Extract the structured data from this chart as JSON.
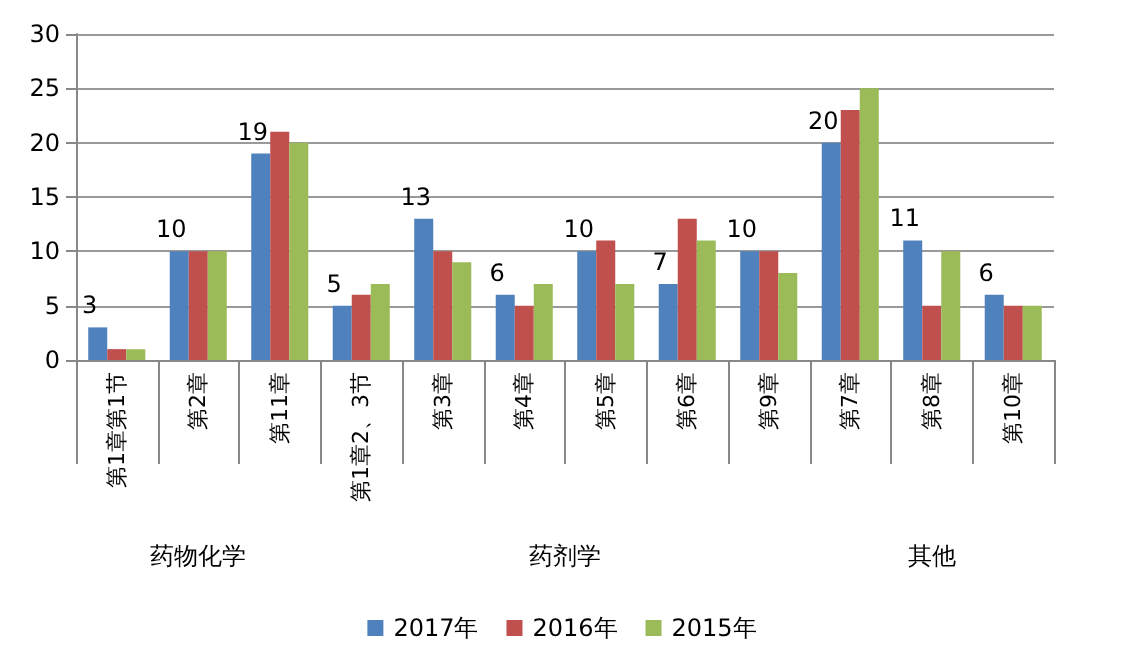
{
  "chart_data": {
    "type": "bar",
    "categories": [
      "第1章第1节",
      "第2章",
      "第11章",
      "第1章2、3节",
      "第3章",
      "第4章",
      "第5章",
      "第6章",
      "第9章",
      "第7章",
      "第8章",
      "第10章"
    ],
    "series": [
      {
        "name": "2017年",
        "color": "#4f81bd",
        "values": [
          3,
          10,
          19,
          5,
          13,
          6,
          10,
          7,
          10,
          20,
          11,
          6
        ],
        "value_labels": [
          "3",
          "10",
          "19",
          "5",
          "13",
          "6",
          "10",
          "7",
          "10",
          "20",
          "11",
          "6"
        ]
      },
      {
        "name": "2016年",
        "color": "#c0504d",
        "values": [
          1,
          10,
          21,
          6,
          10,
          5,
          11,
          13,
          10,
          23,
          5,
          5
        ]
      },
      {
        "name": "2015年",
        "color": "#9bbb59",
        "values": [
          1,
          10,
          20,
          7,
          9,
          7,
          7,
          11,
          8,
          25,
          10,
          5
        ]
      }
    ],
    "annotations": [
      "药物化学",
      "药剂学",
      "其他"
    ],
    "ylim": [
      0,
      30
    ],
    "yticks": [
      0,
      5,
      10,
      15,
      20,
      25,
      30
    ],
    "grid": "y",
    "legend": "bottom"
  }
}
